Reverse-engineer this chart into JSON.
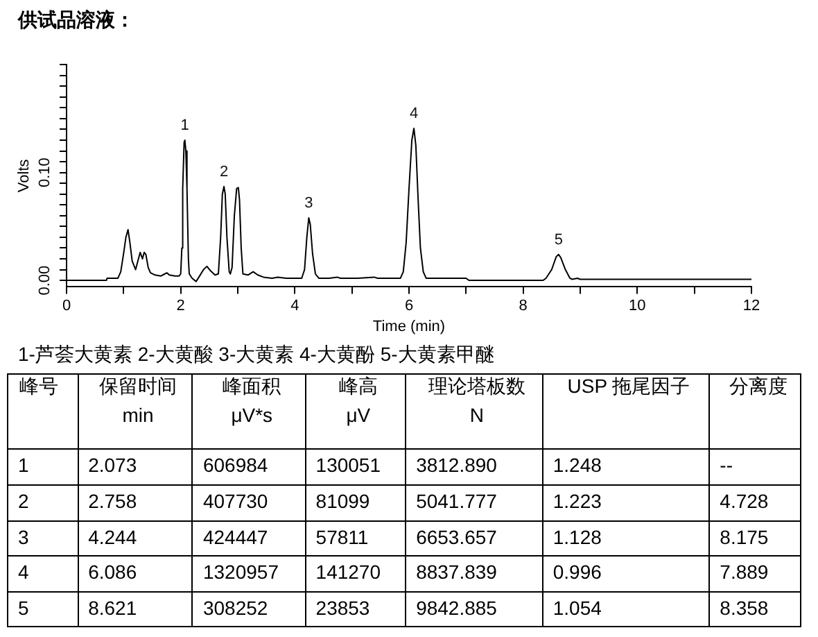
{
  "chart_data": {
    "type": "line",
    "title": "供试品溶液：",
    "xlabel": "Time (min)",
    "ylabel": "Volts",
    "x": [
      0,
      0.7,
      0.71,
      0.9,
      0.95,
      1.0,
      1.04,
      1.077,
      1.11,
      1.15,
      1.21,
      1.26,
      1.29,
      1.33,
      1.36,
      1.39,
      1.43,
      1.47,
      1.55,
      1.65,
      1.72,
      1.76,
      1.8,
      1.9,
      1.97,
      2.0,
      2.02,
      2.035,
      2.06,
      2.073,
      2.09,
      2.11,
      2.135,
      2.15,
      2.2,
      2.27,
      2.33,
      2.4,
      2.46,
      2.52,
      2.6,
      2.66,
      2.7,
      2.73,
      2.758,
      2.78,
      2.81,
      2.85,
      2.87,
      2.9,
      2.94,
      2.98,
      3.01,
      3.03,
      3.06,
      3.09,
      3.18,
      3.27,
      3.35,
      3.45,
      3.6,
      3.7,
      3.85,
      3.95,
      4.05,
      4.12,
      4.17,
      4.21,
      4.244,
      4.27,
      4.31,
      4.36,
      4.42,
      4.6,
      4.74,
      4.8,
      5.1,
      5.39,
      5.45,
      5.85,
      5.9,
      5.95,
      6.0,
      6.05,
      6.086,
      6.12,
      6.16,
      6.2,
      6.25,
      6.3,
      7.0,
      7.05,
      8.35,
      8.4,
      8.5,
      8.58,
      8.621,
      8.66,
      8.74,
      8.82,
      8.86,
      8.95,
      9.0,
      12.0
    ],
    "series": [
      {
        "color": "#000000",
        "values": [
          0,
          0,
          0.002,
          0.002,
          0.008,
          0.025,
          0.04,
          0.047,
          0.035,
          0.018,
          0.01,
          0.02,
          0.026,
          0.02,
          0.026,
          0.024,
          0.012,
          0.007,
          0.005,
          0.004,
          0.006,
          0.007,
          0.005,
          0.004,
          0.004,
          0.006,
          0.03,
          0.085,
          0.128,
          0.13,
          0.12,
          0.085,
          0.02,
          0.006,
          0.002,
          -0.001,
          0.004,
          0.01,
          0.013,
          0.009,
          0.005,
          0.006,
          0.04,
          0.08,
          0.087,
          0.08,
          0.04,
          0.008,
          0.006,
          0.012,
          0.06,
          0.085,
          0.086,
          0.075,
          0.03,
          0.006,
          0.005,
          0.008,
          0.005,
          0.003,
          0.002,
          0.003,
          0.002,
          0.002,
          0.002,
          0.002,
          0.01,
          0.04,
          0.058,
          0.052,
          0.025,
          0.006,
          0.002,
          0.002,
          0.003,
          0.002,
          0.002,
          0.003,
          0.002,
          0.002,
          0.008,
          0.035,
          0.085,
          0.13,
          0.141,
          0.125,
          0.075,
          0.03,
          0.008,
          0.002,
          0.002,
          0,
          0,
          0.002,
          0.01,
          0.022,
          0.024,
          0.021,
          0.01,
          0.002,
          0.001,
          0.002,
          0.001,
          0.001
        ]
      }
    ],
    "xlim": [
      0,
      12
    ],
    "xticks": [
      0,
      {
        "value": 1,
        "label": null
      },
      2,
      {
        "value": 3,
        "label": null
      },
      4,
      {
        "value": 5,
        "label": null
      },
      6,
      {
        "value": 7,
        "label": null
      },
      8,
      {
        "value": 9,
        "label": null
      },
      10,
      {
        "value": 11,
        "label": null
      },
      12
    ],
    "ylim": [
      -0.006,
      0.2
    ],
    "yticks": [
      {
        "value": 0,
        "label": "0.00"
      },
      {
        "value": 0.01,
        "label": null
      },
      {
        "value": 0.02,
        "label": null
      },
      {
        "value": 0.03,
        "label": null
      },
      {
        "value": 0.04,
        "label": null
      },
      {
        "value": 0.05,
        "label": null
      },
      {
        "value": 0.06,
        "label": null
      },
      {
        "value": 0.07,
        "label": null
      },
      {
        "value": 0.08,
        "label": null
      },
      {
        "value": 0.09,
        "label": null
      },
      {
        "value": 0.1,
        "label": "0.10"
      },
      {
        "value": 0.11,
        "label": null
      },
      {
        "value": 0.12,
        "label": null
      },
      {
        "value": 0.13,
        "label": null
      },
      {
        "value": 0.14,
        "label": null
      },
      {
        "value": 0.15,
        "label": null
      },
      {
        "value": 0.16,
        "label": null
      },
      {
        "value": 0.17,
        "label": null
      },
      {
        "value": 0.18,
        "label": null
      },
      {
        "value": 0.19,
        "label": null
      },
      {
        "value": 0.2,
        "label": null
      }
    ],
    "annotations": [
      {
        "text": "1",
        "x": 2.073,
        "y": 0.13
      },
      {
        "text": "2",
        "x": 2.758,
        "y": 0.087
      },
      {
        "text": "3",
        "x": 4.244,
        "y": 0.058
      },
      {
        "text": "4",
        "x": 6.086,
        "y": 0.141
      },
      {
        "text": "5",
        "x": 8.621,
        "y": 0.024
      },
      "1-芦荟大黄素 2-大黄酸 3-大黄素 4-大黄酚 5-大黄素甲醚",
      "峰号",
      "保留时间\nmin",
      "峰面积\nμV*s",
      "峰高\nμV",
      "理论塔板数\nN",
      "USP 拖尾因子",
      "分离度",
      "1",
      "2.073",
      "606984",
      "130051",
      "3812.890",
      "1.248",
      "--",
      "2",
      "2.758",
      "407730",
      "81099",
      "5041.777",
      "1.223",
      "4.728",
      "3",
      "4.244",
      "424447",
      "57811",
      "6653.657",
      "1.128",
      "8.175",
      "4",
      "6.086",
      "1320957",
      "141270",
      "8837.839",
      "0.996",
      "7.889",
      "5",
      "8.621",
      "308252",
      "23853",
      "9842.885",
      "1.054",
      "8.358"
    ]
  }
}
